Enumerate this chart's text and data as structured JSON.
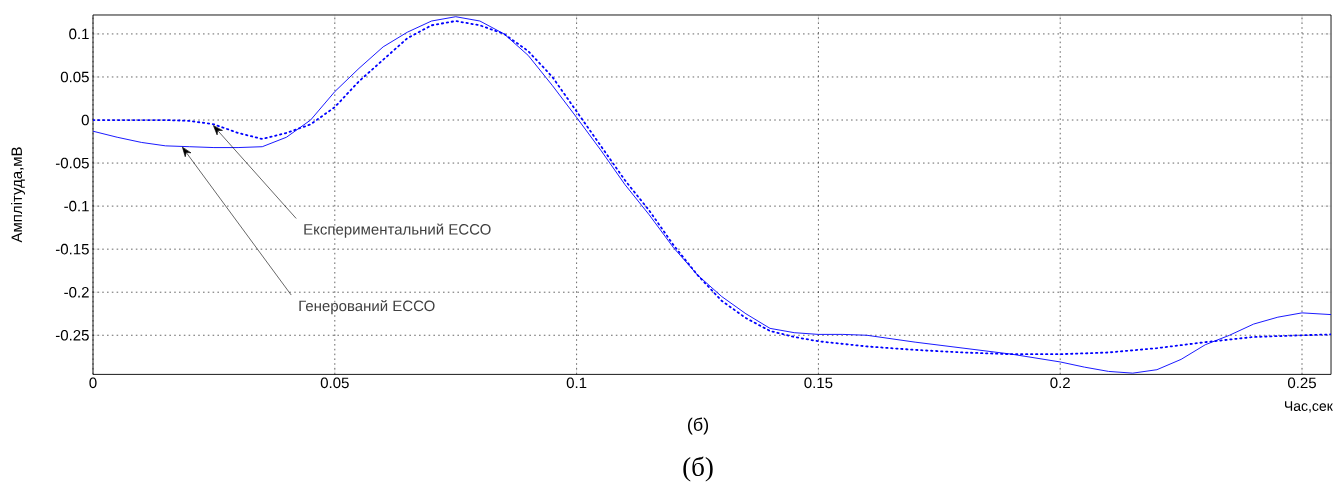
{
  "chart_data": {
    "type": "line",
    "xlabel": "Час,сек",
    "ylabel": "Амплітуда,мВ",
    "xlim": [
      0,
      0.256
    ],
    "ylim": [
      -0.295,
      0.122
    ],
    "xticks": [
      0,
      0.05,
      0.1,
      0.15,
      0.2,
      0.25
    ],
    "yticks": [
      -0.25,
      -0.2,
      -0.15,
      -0.1,
      -0.05,
      0,
      0.05,
      0.1
    ],
    "grid": true,
    "series": [
      {
        "color": "#0000ff",
        "line_style": "solid",
        "x": [
          0,
          0.005,
          0.01,
          0.015,
          0.02,
          0.025,
          0.03,
          0.035,
          0.04,
          0.045,
          0.05,
          0.055,
          0.06,
          0.065,
          0.07,
          0.075,
          0.08,
          0.085,
          0.09,
          0.095,
          0.1,
          0.105,
          0.11,
          0.115,
          0.12,
          0.125,
          0.13,
          0.135,
          0.14,
          0.145,
          0.15,
          0.155,
          0.16,
          0.17,
          0.18,
          0.19,
          0.2,
          0.205,
          0.21,
          0.215,
          0.22,
          0.225,
          0.23,
          0.235,
          0.24,
          0.245,
          0.25,
          0.256
        ],
        "values": [
          -0.013,
          -0.02,
          -0.026,
          -0.03,
          -0.031,
          -0.032,
          -0.032,
          -0.031,
          -0.02,
          0.0,
          0.033,
          0.06,
          0.085,
          0.102,
          0.115,
          0.12,
          0.115,
          0.1,
          0.075,
          0.04,
          0.003,
          -0.035,
          -0.075,
          -0.11,
          -0.148,
          -0.18,
          -0.205,
          -0.225,
          -0.242,
          -0.247,
          -0.249,
          -0.249,
          -0.25,
          -0.258,
          -0.265,
          -0.272,
          -0.281,
          -0.287,
          -0.292,
          -0.294,
          -0.29,
          -0.278,
          -0.261,
          -0.25,
          -0.237,
          -0.229,
          -0.224,
          -0.226
        ]
      },
      {
        "color": "#0000ff",
        "line_style": "dotted",
        "x": [
          0,
          0.005,
          0.01,
          0.015,
          0.02,
          0.025,
          0.03,
          0.035,
          0.04,
          0.045,
          0.05,
          0.055,
          0.06,
          0.065,
          0.07,
          0.075,
          0.08,
          0.085,
          0.09,
          0.095,
          0.1,
          0.105,
          0.11,
          0.115,
          0.12,
          0.125,
          0.13,
          0.135,
          0.14,
          0.145,
          0.15,
          0.16,
          0.17,
          0.18,
          0.19,
          0.2,
          0.21,
          0.22,
          0.23,
          0.24,
          0.25,
          0.256
        ],
        "values": [
          0,
          0,
          0,
          0,
          -0.001,
          -0.005,
          -0.015,
          -0.022,
          -0.015,
          -0.005,
          0.015,
          0.045,
          0.07,
          0.095,
          0.11,
          0.115,
          0.11,
          0.1,
          0.08,
          0.05,
          0.01,
          -0.03,
          -0.07,
          -0.105,
          -0.145,
          -0.18,
          -0.21,
          -0.23,
          -0.245,
          -0.252,
          -0.257,
          -0.263,
          -0.267,
          -0.27,
          -0.272,
          -0.272,
          -0.27,
          -0.265,
          -0.258,
          -0.252,
          -0.25,
          -0.249
        ]
      }
    ],
    "annotations": [
      {
        "text": "Експериментальний ЕССО",
        "x": 0.0248,
        "y": -0.006
      },
      {
        "text": "Генерований ЕССО",
        "x": 0.0184,
        "y": -0.031
      },
      "(б)",
      "(б)"
    ]
  }
}
